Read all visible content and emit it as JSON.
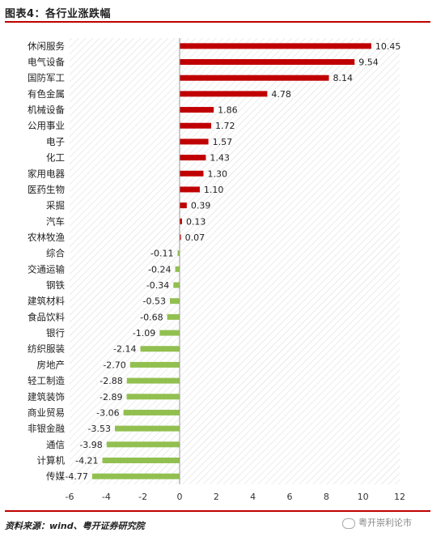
{
  "header": {
    "title": "图表4：各行业涨跌幅"
  },
  "footer": {
    "source": "资料来源：wind、粤开证券研究院",
    "watermark": "粤开崇利论市"
  },
  "colors": {
    "positive": "#c00000",
    "negative": "#92c050",
    "rule": "#c00000"
  },
  "chart_data": {
    "type": "bar",
    "orientation": "horizontal",
    "title": "",
    "xlabel": "",
    "ylabel": "",
    "xlim": [
      -6,
      12
    ],
    "x_ticks": [
      "-6",
      "-4",
      "-2",
      "0",
      "2",
      "4",
      "6",
      "8",
      "10",
      "12"
    ],
    "grid": false,
    "background": "diagonal-hatch",
    "categories": [
      "休闲服务",
      "电气设备",
      "国防军工",
      "有色金属",
      "机械设备",
      "公用事业",
      "电子",
      "化工",
      "家用电器",
      "医药生物",
      "采掘",
      "汽车",
      "农林牧渔",
      "综合",
      "交通运输",
      "钢铁",
      "建筑材料",
      "食品饮料",
      "银行",
      "纺织服装",
      "房地产",
      "轻工制造",
      "建筑装饰",
      "商业贸易",
      "非银金融",
      "通信",
      "计算机",
      "传媒"
    ],
    "values": [
      10.45,
      9.54,
      8.14,
      4.78,
      1.86,
      1.72,
      1.57,
      1.43,
      1.3,
      1.1,
      0.39,
      0.13,
      0.07,
      -0.11,
      -0.24,
      -0.34,
      -0.53,
      -0.68,
      -1.09,
      -2.14,
      -2.7,
      -2.88,
      -2.89,
      -3.06,
      -3.53,
      -3.98,
      -4.21,
      -4.77
    ],
    "value_labels": [
      "10.45",
      "9.54",
      "8.14",
      "4.78",
      "1.86",
      "1.72",
      "1.57",
      "1.43",
      "1.30",
      "1.10",
      "0.39",
      "0.13",
      "0.07",
      "-0.11",
      "-0.24",
      "-0.34",
      "-0.53",
      "-0.68",
      "-1.09",
      "-2.14",
      "-2.70",
      "-2.88",
      "-2.89",
      "-3.06",
      "-3.53",
      "-3.98",
      "-4.21",
      "-4.77"
    ]
  }
}
